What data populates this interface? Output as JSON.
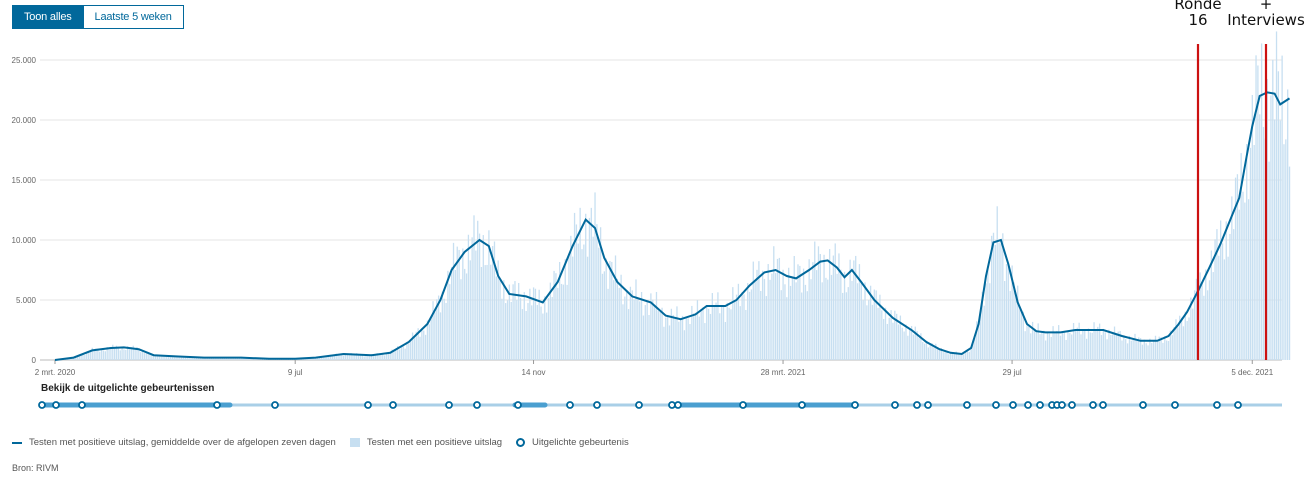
{
  "tabs": [
    "Toon alles",
    "Laatste 5 weken"
  ],
  "events_title": "Bekijk de uitgelichte gebeurtenissen",
  "annotations": [
    {
      "label_line1": "Ronde",
      "label_line2": "16",
      "date_index": 639,
      "color": "#cc1111"
    },
    {
      "label_line1": "+",
      "label_line2": "Interviews",
      "date_index": 642,
      "color": "#cc1111"
    }
  ],
  "legend": {
    "line": "Testen met positieve uitslag, gemiddelde over de afgelopen zeven dagen",
    "bar": "Testen met een positieve uitslag",
    "event": "Uitgelichte gebeurtenis"
  },
  "source": "Bron: RIVM",
  "colors": {
    "line": "#01689b",
    "bar": "#c7dff1",
    "grid": "#e4e4e4",
    "axis": "#888888"
  },
  "chart_data": {
    "type": "bar",
    "title": "",
    "xlabel": "",
    "ylabel": "",
    "ylim": [
      0,
      25000
    ],
    "yticks": [
      {
        "value": 0,
        "label": "0"
      },
      {
        "value": 5000,
        "label": "5.000"
      },
      {
        "value": 10000,
        "label": "10.000"
      },
      {
        "value": 15000,
        "label": "15.000"
      },
      {
        "value": 20000,
        "label": "20.000"
      },
      {
        "value": 25000,
        "label": "25.000"
      }
    ],
    "xticks": [
      {
        "day": 0,
        "label": "2 mrt. 2020"
      },
      {
        "day": 129,
        "label": "9 jul"
      },
      {
        "day": 257,
        "label": "14 nov"
      },
      {
        "day": 391,
        "label": "28 mrt. 2021"
      },
      {
        "day": 514,
        "label": "29 jul"
      },
      {
        "day": 643,
        "label": "5 dec. 2021"
      }
    ],
    "x_range_days": [
      0,
      652
    ],
    "series": [
      {
        "name": "Testen met positieve uitslag, gemiddelde over de afgelopen zeven dagen",
        "type": "line",
        "points": [
          [
            0,
            0
          ],
          [
            10,
            200
          ],
          [
            20,
            800
          ],
          [
            30,
            1000
          ],
          [
            37,
            1050
          ],
          [
            45,
            900
          ],
          [
            53,
            400
          ],
          [
            65,
            300
          ],
          [
            80,
            200
          ],
          [
            100,
            200
          ],
          [
            115,
            100
          ],
          [
            129,
            100
          ],
          [
            140,
            200
          ],
          [
            155,
            500
          ],
          [
            170,
            400
          ],
          [
            180,
            600
          ],
          [
            190,
            1500
          ],
          [
            200,
            3000
          ],
          [
            207,
            5000
          ],
          [
            213,
            7500
          ],
          [
            220,
            9000
          ],
          [
            228,
            10000
          ],
          [
            233,
            9500
          ],
          [
            238,
            7000
          ],
          [
            244,
            5500
          ],
          [
            253,
            5300
          ],
          [
            262,
            4800
          ],
          [
            270,
            6500
          ],
          [
            278,
            9500
          ],
          [
            285,
            11700
          ],
          [
            290,
            11000
          ],
          [
            295,
            8500
          ],
          [
            302,
            6500
          ],
          [
            310,
            5300
          ],
          [
            320,
            4800
          ],
          [
            328,
            3700
          ],
          [
            336,
            3400
          ],
          [
            344,
            3800
          ],
          [
            350,
            4500
          ],
          [
            360,
            4500
          ],
          [
            366,
            5000
          ],
          [
            373,
            6200
          ],
          [
            381,
            7300
          ],
          [
            387,
            7500
          ],
          [
            393,
            7000
          ],
          [
            398,
            6800
          ],
          [
            405,
            7500
          ],
          [
            411,
            8200
          ],
          [
            415,
            8300
          ],
          [
            420,
            7700
          ],
          [
            424,
            6900
          ],
          [
            428,
            7500
          ],
          [
            433,
            6500
          ],
          [
            440,
            5000
          ],
          [
            450,
            3500
          ],
          [
            460,
            2500
          ],
          [
            468,
            1500
          ],
          [
            475,
            900
          ],
          [
            481,
            600
          ],
          [
            487,
            500
          ],
          [
            492,
            1000
          ],
          [
            496,
            3000
          ],
          [
            500,
            7000
          ],
          [
            504,
            9800
          ],
          [
            508,
            10000
          ],
          [
            512,
            8000
          ],
          [
            517,
            4800
          ],
          [
            522,
            3000
          ],
          [
            527,
            2400
          ],
          [
            532,
            2300
          ],
          [
            540,
            2300
          ],
          [
            548,
            2500
          ],
          [
            563,
            2500
          ],
          [
            573,
            2000
          ],
          [
            583,
            1600
          ],
          [
            592,
            1600
          ],
          [
            598,
            2000
          ],
          [
            603,
            2900
          ],
          [
            608,
            4000
          ],
          [
            614,
            5800
          ],
          [
            620,
            7700
          ],
          [
            626,
            9700
          ],
          [
            632,
            12000
          ],
          [
            636,
            13500
          ],
          [
            640,
            17000
          ],
          [
            643,
            19500
          ],
          [
            647,
            22000
          ],
          [
            651,
            22300
          ],
          [
            655,
            22200
          ],
          [
            658,
            21300
          ],
          [
            663,
            21800
          ]
        ]
      },
      {
        "name": "Testen met een positieve uitslag",
        "type": "bar",
        "note": "daily values approximately following the 7-day average",
        "envelope_ref": "line"
      }
    ],
    "events": {
      "markers_px_note": "",
      "count": 45
    }
  }
}
